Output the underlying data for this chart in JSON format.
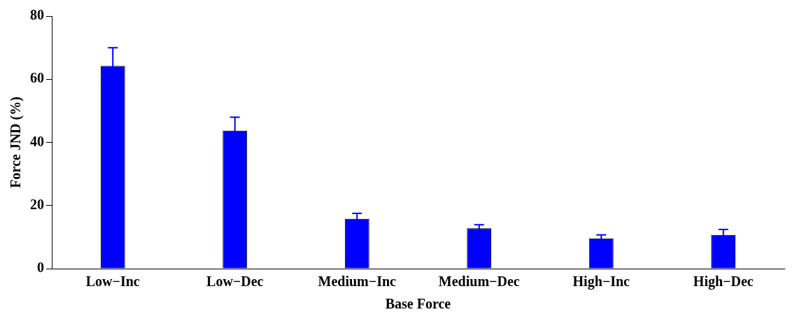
{
  "chart_data": {
    "type": "bar",
    "xlabel": "Base Force",
    "ylabel": "Force JND (%)",
    "categories": [
      "Low−Inc",
      "Low−Dec",
      "Medium−Inc",
      "Medium−Dec",
      "High−Inc",
      "High−Dec"
    ],
    "values": [
      64.2,
      43.7,
      15.8,
      12.8,
      9.6,
      10.7
    ],
    "errors": [
      5.8,
      4.3,
      1.7,
      1.1,
      1.1,
      1.7
    ],
    "color": "#0000ff",
    "ylim": [
      0,
      80
    ],
    "yticks": [
      0,
      20,
      40,
      60,
      80
    ],
    "grid": false,
    "legend": false
  }
}
